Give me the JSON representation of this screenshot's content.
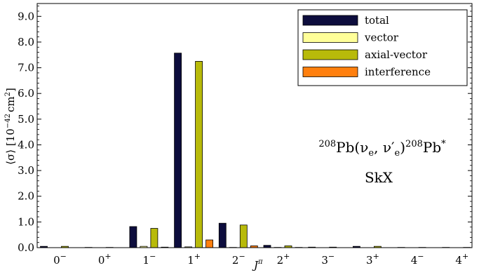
{
  "chart_data": {
    "type": "bar",
    "categories": [
      "0⁻",
      "0⁺",
      "1⁻",
      "1⁺",
      "2⁻",
      "2⁺",
      "3⁻",
      "3⁺",
      "4⁻",
      "4⁺"
    ],
    "series": [
      {
        "name": "total",
        "color": "#0d0d3d",
        "values": [
          0.05,
          0.01,
          0.82,
          7.57,
          0.95,
          0.09,
          0.02,
          0.05,
          0.01,
          0.01
        ]
      },
      {
        "name": "vector",
        "color": "#ffff99",
        "values": [
          0.0,
          0.0,
          0.05,
          0.03,
          0.01,
          0.01,
          0.0,
          0.0,
          0.0,
          0.0
        ]
      },
      {
        "name": "axial-vector",
        "color": "#b8ba0a",
        "values": [
          0.05,
          0.01,
          0.75,
          7.25,
          0.88,
          0.07,
          0.02,
          0.05,
          0.01,
          0.01
        ]
      },
      {
        "name": "interference",
        "color": "#ff7f0e",
        "values": [
          0.0,
          0.0,
          0.02,
          0.3,
          0.07,
          0.01,
          0.0,
          0.0,
          0.0,
          0.0
        ]
      }
    ],
    "yticks": [
      "0.0",
      "1.0",
      "2.0",
      "3.0",
      "4.0",
      "5.0",
      "6.0",
      "7.0",
      "8.0",
      "9.0"
    ],
    "ylim": [
      0,
      9.5
    ],
    "ylabel_prefix": "⟨σ⟩ [10",
    "ylabel_exp": "−42",
    "ylabel_suffix": "cm",
    "ylabel_unit_exp": "2",
    "ylabel_close": "]",
    "xlabel_main": "J",
    "xlabel_sup": "π",
    "legend_position": "top-right",
    "annotation": {
      "line1_pre": "208",
      "line1_main": "Pb(ν",
      "line1_sub1": "e",
      "line1_mid": ", ν′",
      "line1_sub2": "e",
      "line1_close": ")",
      "line1_post_sup": "208",
      "line1_post": "Pb",
      "line1_star": "*",
      "line2": "SkX"
    }
  }
}
